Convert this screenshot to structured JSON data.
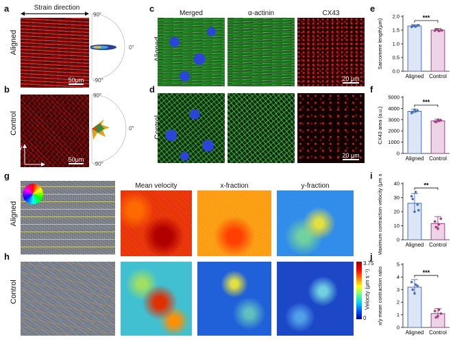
{
  "panels": {
    "a": "a",
    "b": "b",
    "c": "c",
    "d": "d",
    "e": "e",
    "f": "f",
    "g": "g",
    "h": "h",
    "i": "i",
    "j": "j"
  },
  "rows": {
    "aligned": "Aligned",
    "control": "Control"
  },
  "strain_direction": "Strain direction",
  "axes_xy": {
    "x": "x",
    "y": "y"
  },
  "polar": {
    "top": "90°",
    "right": "0°",
    "bottom": "-90°"
  },
  "stain_titles": {
    "merged": "Merged",
    "actinin": "α-actinin",
    "cx43": "CX43"
  },
  "velocity_titles": {
    "mean": "Mean velocity",
    "x": "x-fraction",
    "y": "y-fraction"
  },
  "scalebars": {
    "um50": "50μm",
    "um20": "20 μm"
  },
  "colorbar": {
    "label": "Velocity (μm s⁻¹)",
    "max": "3.75",
    "min": "0"
  },
  "colors": {
    "aligned": "#4a6fbf",
    "control": "#a0407f",
    "aligned_fill": "#dde6f7",
    "control_fill": "#ecd3e5"
  },
  "chart_data": [
    {
      "panel": "e",
      "type": "bar",
      "categories": [
        "Aligned",
        "Control"
      ],
      "values": [
        1.65,
        1.5
      ],
      "errors": [
        0.05,
        0.06
      ],
      "points": [
        [
          1.62,
          1.65,
          1.67,
          1.66,
          1.63,
          1.68
        ],
        [
          1.48,
          1.52,
          1.5,
          1.53,
          1.47,
          1.49
        ]
      ],
      "ylabel": "Sarcomere length(μm)",
      "ylim": [
        0,
        2.0
      ],
      "yticks": [
        "0.0",
        "0.5",
        "1.0",
        "1.5",
        "2.0"
      ],
      "significance": "***"
    },
    {
      "panel": "f",
      "type": "bar",
      "categories": [
        "Aligned",
        "Control"
      ],
      "values": [
        3750,
        2900
      ],
      "errors": [
        200,
        150
      ],
      "points": [
        [
          3600,
          3900,
          3800,
          3700,
          3750
        ],
        [
          2850,
          3000,
          2950,
          2800,
          2900
        ]
      ],
      "ylabel": "CX43 area (a.u.)",
      "ylim": [
        0,
        5000
      ],
      "yticks": [
        "0",
        "1000",
        "2000",
        "3000",
        "4000",
        "5000"
      ],
      "significance": "***"
    },
    {
      "panel": "i",
      "type": "bar",
      "categories": [
        "Aligned",
        "Control"
      ],
      "values": [
        26,
        11.5
      ],
      "errors": [
        7,
        5
      ],
      "points": [
        [
          31,
          20,
          25,
          29,
          34,
          21
        ],
        [
          13,
          8,
          15,
          9,
          11
        ]
      ],
      "ylabel": "Maximum contraction velocity (μm s⁻¹)",
      "ylim": [
        0,
        40
      ],
      "yticks": [
        "0",
        "10",
        "20",
        "30",
        "40"
      ],
      "significance": "**"
    },
    {
      "panel": "j",
      "type": "bar",
      "categories": [
        "Aligned",
        "Control"
      ],
      "values": [
        3.2,
        1.1
      ],
      "errors": [
        0.6,
        0.4
      ],
      "points": [
        [
          3.6,
          2.7,
          3.3,
          3.0,
          3.4
        ],
        [
          1.3,
          0.9,
          1.1,
          0.8,
          1.4
        ]
      ],
      "ylabel": "x/y mean contraction ratio",
      "ylim": [
        0,
        5
      ],
      "yticks": [
        "0",
        "1",
        "2",
        "3",
        "4",
        "5"
      ],
      "significance": "***"
    }
  ]
}
